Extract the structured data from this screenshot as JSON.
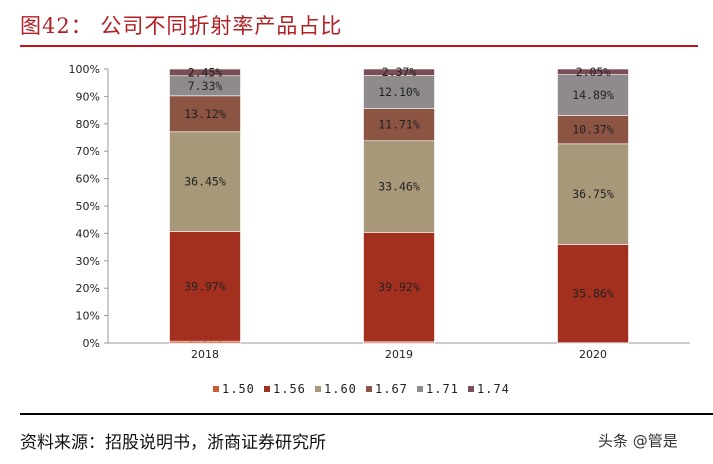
{
  "title": "图42： 公司不同折射率产品占比",
  "source": "资料来源：招股说明书，浙商证券研究所",
  "watermark": "头条 @管是",
  "chart_data": {
    "type": "bar",
    "stacked": true,
    "categories": [
      "2018",
      "2019",
      "2020"
    ],
    "ylim": [
      0,
      100
    ],
    "yticks": [
      "0%",
      "10%",
      "20%",
      "30%",
      "40%",
      "50%",
      "60%",
      "70%",
      "80%",
      "90%",
      "100%"
    ],
    "legend_position": "bottom",
    "series": [
      {
        "name": "1.50",
        "color": "#d4582e",
        "values": [
          0.67,
          0.44,
          0.08
        ],
        "labels": [
          "0.67%",
          "0.44%",
          "0.08%"
        ]
      },
      {
        "name": "1.56",
        "color": "#a3301f",
        "values": [
          39.97,
          39.92,
          35.86
        ],
        "labels": [
          "39.97%",
          "39.92%",
          "35.86%"
        ]
      },
      {
        "name": "1.60",
        "color": "#a8987a",
        "values": [
          36.45,
          33.46,
          36.75
        ],
        "labels": [
          "36.45%",
          "33.46%",
          "36.75%"
        ]
      },
      {
        "name": "1.67",
        "color": "#8c5443",
        "values": [
          13.12,
          11.71,
          10.37
        ],
        "labels": [
          "13.12%",
          "11.71%",
          "10.37%"
        ]
      },
      {
        "name": "1.71",
        "color": "#8f8b8d",
        "values": [
          7.33,
          12.1,
          14.89
        ],
        "labels": [
          "7.33%",
          "12.10%",
          "14.89%"
        ]
      },
      {
        "name": "1.74",
        "color": "#7b4e55",
        "values": [
          2.45,
          2.37,
          2.05
        ],
        "labels": [
          "2.45%",
          "2.37%",
          "2.05%"
        ]
      }
    ]
  }
}
